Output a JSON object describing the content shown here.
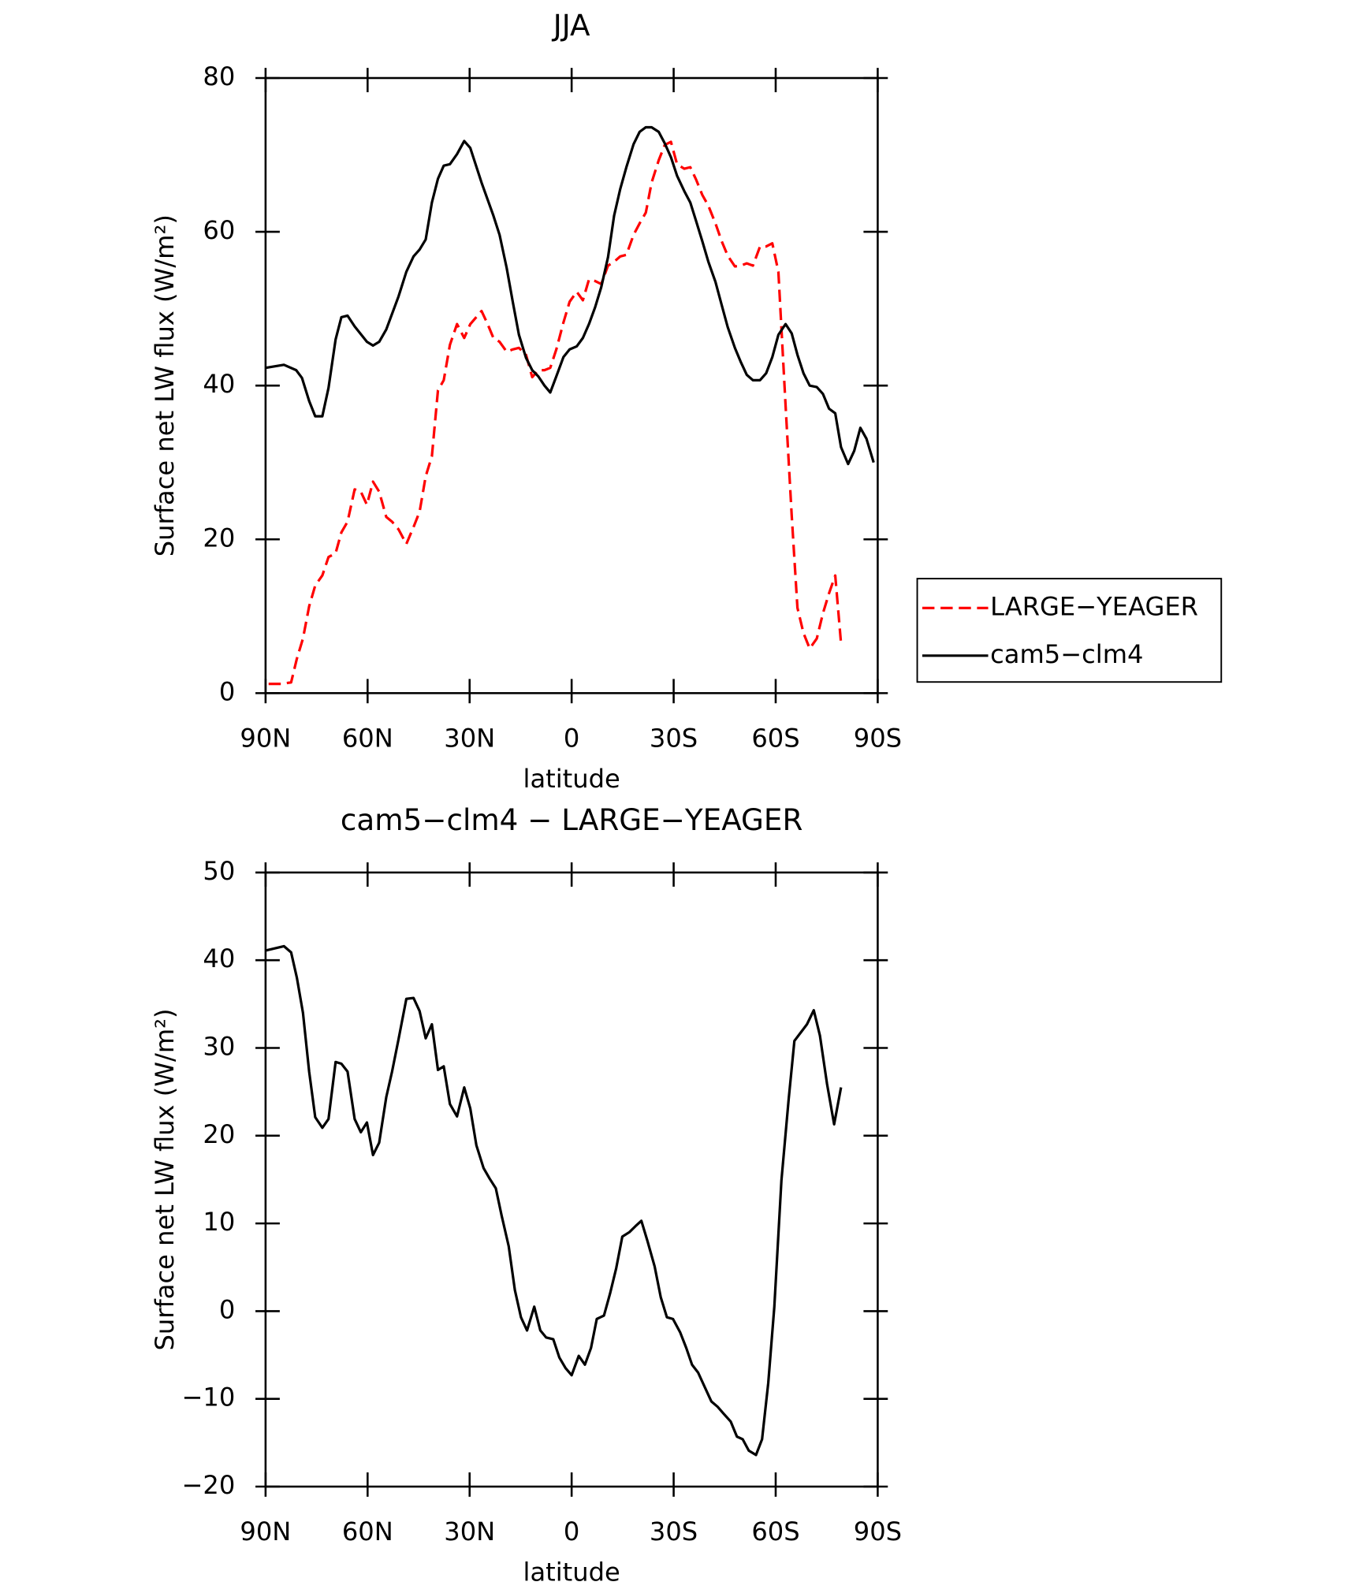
{
  "chart_data": [
    {
      "type": "line",
      "title": "JJA",
      "xlabel": "latitude",
      "ylabel": "Surface net LW flux (W/m²)",
      "xlim": [
        90,
        -90
      ],
      "xticks": [
        {
          "value": 90,
          "label": "90N"
        },
        {
          "value": 60,
          "label": "60N"
        },
        {
          "value": 30,
          "label": "30N"
        },
        0,
        {
          "value": -30,
          "label": "30S"
        },
        {
          "value": -60,
          "label": "60S"
        },
        {
          "value": -90,
          "label": "90S"
        }
      ],
      "ylim": [
        0,
        80
      ],
      "yticks": [
        0,
        20,
        40,
        60,
        80
      ],
      "legend": "outside-right",
      "series": [
        {
          "name": "LARGE−YEAGER",
          "color": "#ff0000",
          "line_style": "dashed",
          "x": [
            89.1,
            85.5,
            82.5,
            80.8,
            79,
            77.2,
            75.4,
            73.3,
            71.5,
            69.4,
            67.7,
            65.9,
            63.8,
            62,
            60.2,
            58.4,
            56.6,
            54.5,
            52.8,
            50.9,
            48.6,
            46.5,
            44.7,
            42.9,
            41.1,
            39.3,
            37.6,
            35.8,
            33.7,
            31.6,
            29.8,
            26.5,
            24.7,
            23,
            21.2,
            19.1,
            17.3,
            15.5,
            13.4,
            11.6,
            9.8,
            8,
            6.3,
            4.5,
            2.4,
            0.6,
            -1.5,
            -3.3,
            -5.1,
            -6.9,
            -8.7,
            -10.7,
            -12.5,
            -14.3,
            -16.1,
            -18.2,
            -20,
            -21.8,
            -23.5,
            -25.6,
            -27.4,
            -29.2,
            -31,
            -33.1,
            -34.9,
            -36.6,
            -38.4,
            -40.2,
            -42.3,
            -44.1,
            -45.9,
            -48,
            -49.8,
            -51.5,
            -53.3,
            -55.4,
            -57.2,
            -59,
            -60.8,
            -62.9,
            -64.7,
            -66.4,
            -68.2,
            -70,
            -72.1,
            -73.9,
            -75.7,
            -77.5,
            -79.2
          ],
          "values": [
            1.2,
            1.2,
            1.4,
            4.5,
            7.1,
            11.3,
            14,
            15.3,
            17.7,
            18.2,
            20.9,
            22.3,
            26.5,
            26.2,
            24.5,
            27.5,
            26.2,
            22.9,
            22.3,
            21.3,
            19.4,
            21.6,
            23.6,
            28.2,
            30.8,
            39.4,
            40.7,
            45.3,
            48,
            46.2,
            48,
            49.7,
            48,
            46.2,
            45.7,
            44.4,
            44.7,
            44.9,
            44,
            41.1,
            42,
            42,
            42.3,
            44.7,
            48.2,
            50.9,
            52.2,
            51.1,
            53.8,
            53.6,
            53.2,
            55.6,
            56.1,
            56.8,
            57,
            59.6,
            61.1,
            62.5,
            66.4,
            69.3,
            71.3,
            71.7,
            68.8,
            68.2,
            68.4,
            66.8,
            64.8,
            63.4,
            61.1,
            58.8,
            56.9,
            55.5,
            55.6,
            55.9,
            55.6,
            58.1,
            58.1,
            58.5,
            54.8,
            37.4,
            23.2,
            11.1,
            7.8,
            5.8,
            7.1,
            10.4,
            13,
            15.3,
            6.5
          ]
        },
        {
          "name": "cam5−clm4",
          "color": "#000000",
          "line_style": "solid",
          "x": [
            90,
            84.6,
            81,
            79.3,
            77.2,
            75.4,
            73.3,
            71.5,
            69.4,
            67.7,
            65.9,
            63.8,
            60.2,
            58.4,
            56.6,
            54.5,
            50.9,
            48.6,
            46.5,
            44.7,
            42.9,
            41.1,
            39.3,
            37.6,
            35.8,
            33.7,
            31.6,
            29.8,
            26.5,
            23,
            21.2,
            19.1,
            17.3,
            15.5,
            13.4,
            11.6,
            9.8,
            8,
            6.3,
            4.5,
            2.4,
            0.6,
            -1.5,
            -3.3,
            -5.1,
            -6.9,
            -8.7,
            -10.7,
            -12.5,
            -14.3,
            -16.1,
            -18.2,
            -20,
            -21.8,
            -23.5,
            -25.6,
            -27.4,
            -29.2,
            -31,
            -33.1,
            -34.9,
            -36.6,
            -38.4,
            -40.2,
            -42.3,
            -44.1,
            -45.9,
            -48,
            -49.8,
            -51.5,
            -53.3,
            -55.4,
            -57.2,
            -59,
            -60.8,
            -62.9,
            -64.7,
            -66.4,
            -68.2,
            -70,
            -72.1,
            -73.9,
            -75.7,
            -77.5,
            -79.2,
            -81.3,
            -83.1,
            -84.9,
            -86.7,
            -88.8
          ],
          "values": [
            42.3,
            42.7,
            42,
            41,
            38,
            36,
            36,
            39.7,
            46,
            48.9,
            49.1,
            47.7,
            45.7,
            45.2,
            45.7,
            47.3,
            51.6,
            54.8,
            56.8,
            57.7,
            59,
            63.8,
            66.9,
            68.6,
            68.8,
            70.1,
            71.8,
            70.9,
            66.4,
            62.1,
            59.6,
            55.3,
            50.9,
            46.6,
            43.6,
            42,
            41.2,
            40,
            39.1,
            41.2,
            43.7,
            44.7,
            45.1,
            46.2,
            48,
            50.2,
            52.8,
            56.7,
            62.1,
            65.6,
            68.4,
            71.4,
            73,
            73.6,
            73.6,
            73,
            71.5,
            69.7,
            67.3,
            65.3,
            63.8,
            61.4,
            58.8,
            56.1,
            53.5,
            50.5,
            47.6,
            44.9,
            43,
            41.4,
            40.7,
            40.7,
            41.6,
            43.7,
            46.6,
            48,
            46.8,
            44,
            41.6,
            40,
            39.8,
            38.9,
            37,
            36.4,
            32,
            29.8,
            31.5,
            34.5,
            33.1,
            30
          ]
        }
      ]
    },
    {
      "type": "line",
      "title": "cam5−clm4 − LARGE−YEAGER",
      "xlabel": "latitude",
      "ylabel": "Surface net LW flux (W/m²)",
      "xlim": [
        90,
        -90
      ],
      "xticks": [
        {
          "value": 90,
          "label": "90N"
        },
        {
          "value": 60,
          "label": "60N"
        },
        {
          "value": 30,
          "label": "30N"
        },
        0,
        {
          "value": -30,
          "label": "30S"
        },
        {
          "value": -60,
          "label": "60S"
        },
        {
          "value": -90,
          "label": "90S"
        }
      ],
      "ylim": [
        -20,
        50
      ],
      "yticks": [
        {
          "value": -20,
          "label": "−20"
        },
        {
          "value": -10,
          "label": "−10"
        },
        0,
        10,
        20,
        30,
        40,
        50
      ],
      "series": [
        {
          "color": "#000000",
          "line_style": "solid",
          "x": [
            90,
            84.6,
            82.5,
            80.8,
            79,
            77.2,
            75.4,
            73.3,
            71.5,
            69.4,
            67.7,
            65.9,
            63.8,
            62,
            60.2,
            58.4,
            56.6,
            54.5,
            52.8,
            50.9,
            48.6,
            46.5,
            44.7,
            42.9,
            41.1,
            39.3,
            37.6,
            35.8,
            33.7,
            31.6,
            29.8,
            28,
            25.9,
            24.1,
            22.3,
            20.6,
            18.5,
            16.7,
            14.9,
            13.1,
            11,
            9.2,
            7.5,
            5.4,
            3.6,
            1.8,
            0,
            -2.1,
            -3.9,
            -5.7,
            -7.4,
            -9.5,
            -11.3,
            -13.1,
            -14.9,
            -17,
            -18.8,
            -20.5,
            -22.3,
            -24.4,
            -26.2,
            -28,
            -29.8,
            -31.9,
            -33.7,
            -35.4,
            -37.2,
            -39.3,
            -41.1,
            -42.9,
            -44.7,
            -46.8,
            -48.6,
            -50.3,
            -52.1,
            -54.2,
            -56,
            -57.8,
            -59.6,
            -61.7,
            -63.8,
            -65.5,
            -69.2,
            -71.2,
            -73,
            -75.1,
            -77.2,
            -79.2
          ],
          "values": [
            41.1,
            41.6,
            40.9,
            38,
            34,
            27.3,
            22.1,
            20.9,
            21.9,
            28.4,
            28.2,
            27.3,
            21.9,
            20.4,
            21.5,
            17.8,
            19.2,
            24.4,
            27.3,
            31,
            35.6,
            35.7,
            34.2,
            31.1,
            32.7,
            27.5,
            27.9,
            23.6,
            22.2,
            25.5,
            23.1,
            18.9,
            16.3,
            15.1,
            14,
            10.9,
            7.4,
            2.4,
            -0.7,
            -2.2,
            0.5,
            -2.2,
            -3,
            -3.2,
            -5.3,
            -6.5,
            -7.3,
            -5.1,
            -6.1,
            -4.2,
            -0.9,
            -0.5,
            2,
            4.9,
            8.5,
            9,
            9.7,
            10.3,
            8,
            5.1,
            1.6,
            -0.7,
            -0.9,
            -2.4,
            -4.2,
            -6.1,
            -7,
            -8.8,
            -10.3,
            -10.9,
            -11.7,
            -12.6,
            -14.3,
            -14.6,
            -15.9,
            -16.4,
            -14.6,
            -8.2,
            0.5,
            14.9,
            24.1,
            30.8,
            32.7,
            34.3,
            31.4,
            25.9,
            21.3,
            25.5
          ]
        }
      ]
    }
  ]
}
